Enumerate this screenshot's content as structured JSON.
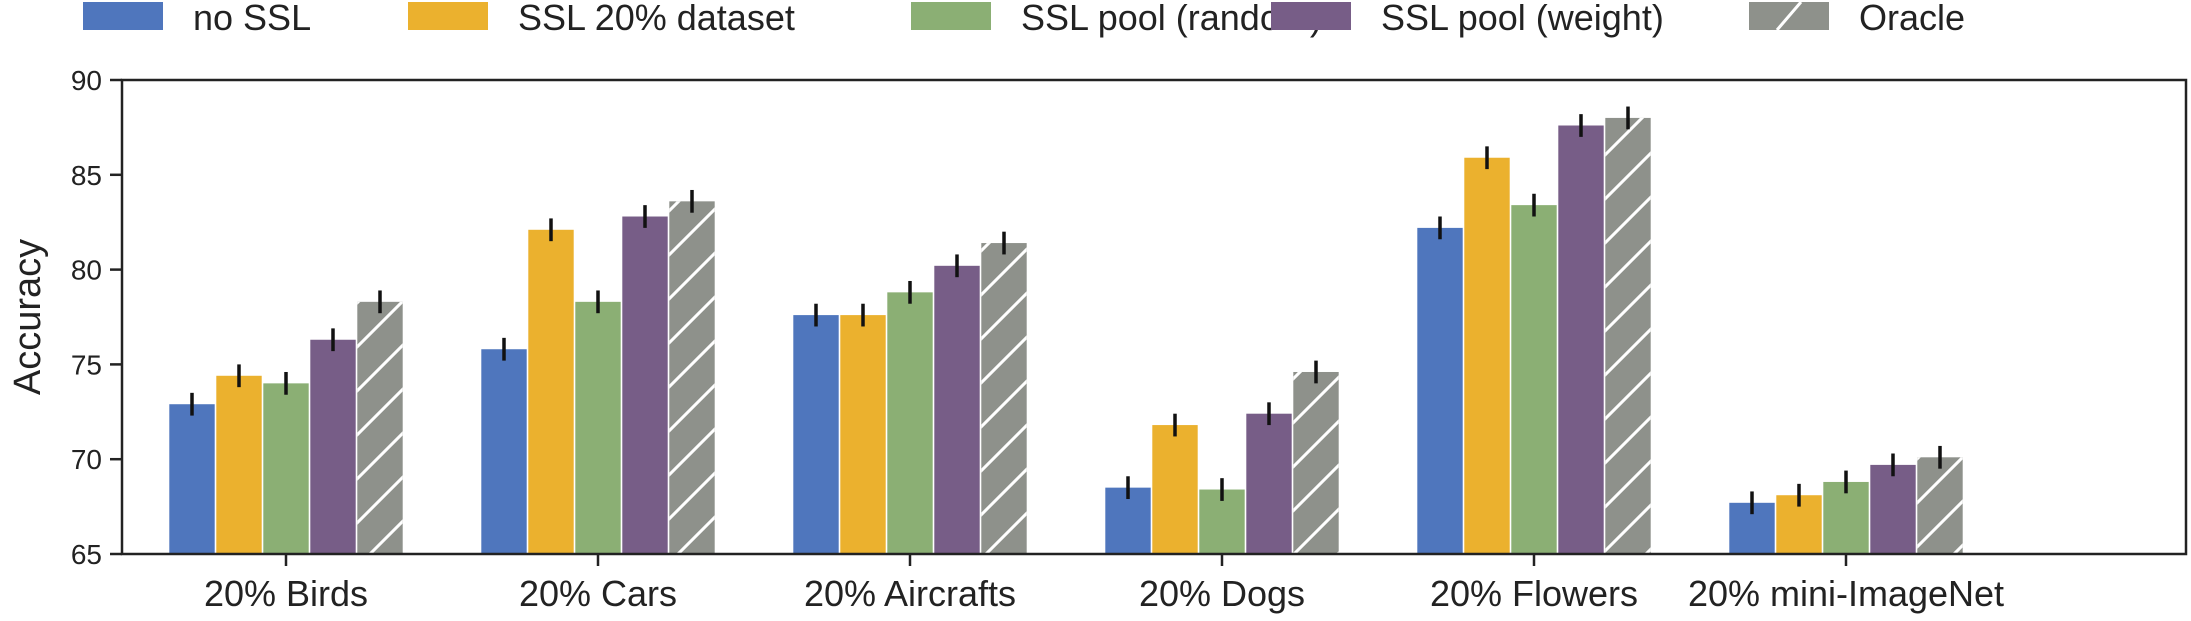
{
  "chart_data": {
    "type": "bar",
    "xlabel": "",
    "ylabel": "Accuracy",
    "ylim": [
      65,
      90
    ],
    "yticks": [
      65,
      70,
      75,
      80,
      85,
      90
    ],
    "legend_position": "top",
    "grid": false,
    "categories": [
      "20% Birds",
      "20% Cars",
      "20% Aircrafts",
      "20% Dogs",
      "20% Flowers",
      "20% mini-ImageNet"
    ],
    "series": [
      {
        "name": "no SSL",
        "color": "#4f76bd",
        "hatch": false,
        "values": [
          72.9,
          75.8,
          77.6,
          68.5,
          82.2,
          67.7
        ],
        "errors": [
          0.6,
          0.6,
          0.6,
          0.6,
          0.6,
          0.6
        ]
      },
      {
        "name": "SSL 20% dataset",
        "color": "#ebb12e",
        "hatch": false,
        "values": [
          74.4,
          82.1,
          77.6,
          71.8,
          85.9,
          68.1
        ],
        "errors": [
          0.6,
          0.6,
          0.6,
          0.6,
          0.6,
          0.6
        ]
      },
      {
        "name": "SSL pool (random)",
        "color": "#8baf74",
        "hatch": false,
        "values": [
          74.0,
          78.3,
          78.8,
          68.4,
          83.4,
          68.8
        ],
        "errors": [
          0.6,
          0.6,
          0.6,
          0.6,
          0.6,
          0.6
        ]
      },
      {
        "name": "SSL pool (weight)",
        "color": "#775d87",
        "hatch": false,
        "values": [
          76.3,
          82.8,
          80.2,
          72.4,
          87.6,
          69.7
        ],
        "errors": [
          0.6,
          0.6,
          0.6,
          0.6,
          0.6,
          0.6
        ]
      },
      {
        "name": "Oracle",
        "color": "#8e918b",
        "hatch": true,
        "values": [
          78.3,
          83.6,
          81.4,
          74.6,
          88.0,
          70.1
        ],
        "errors": [
          0.6,
          0.6,
          0.6,
          0.6,
          0.6,
          0.6
        ]
      }
    ]
  }
}
